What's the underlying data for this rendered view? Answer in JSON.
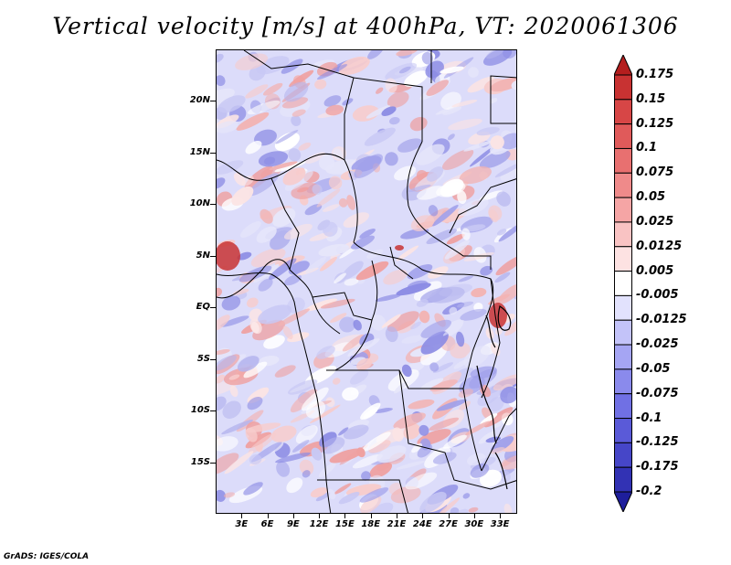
{
  "title": "Vertical velocity [m/s] at 400hPa, VT: 2020061306",
  "credit": "GrADS: IGES/COLA",
  "map": {
    "lon_range": [
      0,
      35
    ],
    "lat_range": [
      -20,
      25
    ],
    "lat_labels": [
      {
        "lat": 20,
        "text": "20N"
      },
      {
        "lat": 15,
        "text": "15N"
      },
      {
        "lat": 10,
        "text": "10N"
      },
      {
        "lat": 5,
        "text": "5N"
      },
      {
        "lat": 0,
        "text": "EQ"
      },
      {
        "lat": -5,
        "text": "5S"
      },
      {
        "lat": -10,
        "text": "10S"
      },
      {
        "lat": -15,
        "text": "15S"
      }
    ],
    "lon_labels": [
      {
        "lon": 3,
        "text": "3E"
      },
      {
        "lon": 6,
        "text": "6E"
      },
      {
        "lon": 9,
        "text": "9E"
      },
      {
        "lon": 12,
        "text": "12E"
      },
      {
        "lon": 15,
        "text": "15E"
      },
      {
        "lon": 18,
        "text": "18E"
      },
      {
        "lon": 21,
        "text": "21E"
      },
      {
        "lon": 24,
        "text": "24E"
      },
      {
        "lon": 27,
        "text": "27E"
      },
      {
        "lon": 30,
        "text": "30E"
      },
      {
        "lon": 33,
        "text": "33E"
      }
    ]
  },
  "colorbar": {
    "labels": [
      "0.175",
      "0.15",
      "0.125",
      "0.1",
      "0.075",
      "0.05",
      "0.025",
      "0.0125",
      "0.005",
      "-0.005",
      "-0.0125",
      "-0.025",
      "-0.05",
      "-0.075",
      "-0.1",
      "-0.125",
      "-0.175",
      "-0.2"
    ],
    "colors": [
      "#b41e1e",
      "#c83232",
      "#d74646",
      "#e05a5a",
      "#e87070",
      "#ef8a8a",
      "#f5a5a5",
      "#f9c3c3",
      "#fde2e2",
      "#ffffff",
      "#e2e2fd",
      "#c3c3f9",
      "#a5a5f3",
      "#8a8aec",
      "#7070e4",
      "#5a5ad8",
      "#4646c8",
      "#3232b4",
      "#1e1e9c"
    ]
  }
}
